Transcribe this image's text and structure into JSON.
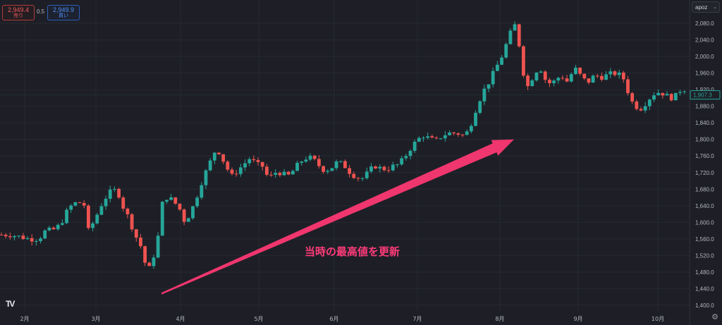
{
  "trade": {
    "sell_price": "2,949.4",
    "sell_label": "売り",
    "spread": "0.5",
    "buy_price": "2,949.9",
    "buy_label": "買い"
  },
  "symbol_badge": "apoz",
  "annotation": "当時の最高値を更新",
  "icons": {
    "logo": "tradingview-logo",
    "settings": "gear-icon"
  },
  "colors": {
    "background": "#1e1f26",
    "up": "#26a69a",
    "down": "#ef5350",
    "arrow": "#f0366e",
    "annotation_text": "#ff3b7a",
    "axis_text": "#b2b5be",
    "grid": "#262833"
  },
  "chart_data": {
    "type": "candlestick",
    "x_tick_labels": [
      "2月",
      "3月",
      "4月",
      "5月",
      "6月",
      "7月",
      "8月",
      "9月",
      "10月"
    ],
    "y_ticks": [
      1400,
      1440,
      1480,
      1520,
      1560,
      1600,
      1640,
      1680,
      1720,
      1760,
      1800,
      1840,
      1880,
      1920,
      1960,
      2000,
      2040,
      2080
    ],
    "y_tick_labels": [
      "1,400.0",
      "1,440.0",
      "1,480.0",
      "1,520.0",
      "1,560.0",
      "1,600.0",
      "1,640.0",
      "1,680.0",
      "1,720.0",
      "1,760.0",
      "1,800.0",
      "1,840.0",
      "1,880.0",
      "1,920.0",
      "1,960.0",
      "2,000.0",
      "2,040.0",
      "2,080.0"
    ],
    "ylim": [
      1385,
      2105
    ],
    "last_price_label": "1,907.3",
    "grid": true,
    "close_path": [
      [
        0,
        1570
      ],
      [
        3,
        1570
      ],
      [
        6,
        1565
      ],
      [
        9,
        1560
      ],
      [
        12,
        1560
      ],
      [
        14,
        1578
      ],
      [
        17,
        1583
      ],
      [
        19,
        1595
      ],
      [
        21,
        1625
      ],
      [
        23,
        1645
      ],
      [
        25,
        1648
      ],
      [
        27,
        1640
      ],
      [
        28,
        1580
      ],
      [
        30,
        1605
      ],
      [
        32,
        1640
      ],
      [
        34,
        1665
      ],
      [
        36,
        1680
      ],
      [
        38,
        1665
      ],
      [
        39,
        1640
      ],
      [
        41,
        1610
      ],
      [
        43,
        1570
      ],
      [
        45,
        1540
      ],
      [
        46,
        1505
      ],
      [
        48,
        1485
      ],
      [
        49,
        1520
      ],
      [
        51,
        1585
      ],
      [
        52,
        1660
      ],
      [
        54,
        1660
      ],
      [
        56,
        1645
      ],
      [
        58,
        1625
      ],
      [
        59,
        1600
      ],
      [
        61,
        1625
      ],
      [
        63,
        1665
      ],
      [
        65,
        1710
      ],
      [
        67,
        1740
      ],
      [
        68,
        1770
      ],
      [
        70,
        1770
      ],
      [
        72,
        1740
      ],
      [
        74,
        1710
      ],
      [
        76,
        1725
      ],
      [
        78,
        1740
      ],
      [
        80,
        1755
      ],
      [
        82,
        1740
      ],
      [
        84,
        1735
      ],
      [
        86,
        1705
      ],
      [
        88,
        1720
      ],
      [
        90,
        1720
      ],
      [
        92,
        1710
      ],
      [
        94,
        1725
      ],
      [
        96,
        1745
      ],
      [
        98,
        1755
      ],
      [
        100,
        1755
      ],
      [
        102,
        1738
      ],
      [
        104,
        1725
      ],
      [
        106,
        1730
      ],
      [
        108,
        1745
      ],
      [
        110,
        1740
      ],
      [
        112,
        1722
      ],
      [
        114,
        1710
      ],
      [
        116,
        1705
      ],
      [
        118,
        1720
      ],
      [
        120,
        1737
      ],
      [
        122,
        1730
      ],
      [
        124,
        1728
      ],
      [
        126,
        1735
      ],
      [
        128,
        1740
      ],
      [
        130,
        1760
      ],
      [
        132,
        1782
      ],
      [
        134,
        1800
      ],
      [
        136,
        1810
      ],
      [
        138,
        1800
      ],
      [
        140,
        1797
      ],
      [
        142,
        1810
      ],
      [
        144,
        1815
      ],
      [
        146,
        1815
      ],
      [
        148,
        1813
      ],
      [
        149,
        1805
      ],
      [
        151,
        1835
      ],
      [
        153,
        1880
      ],
      [
        155,
        1915
      ],
      [
        157,
        1940
      ],
      [
        159,
        1970
      ],
      [
        161,
        2000
      ],
      [
        163,
        2040
      ],
      [
        165,
        2080
      ],
      [
        166,
        2055
      ],
      [
        167,
        2010
      ],
      [
        168,
        1960
      ],
      [
        169,
        1920
      ],
      [
        170,
        1940
      ],
      [
        172,
        1960
      ],
      [
        173,
        1990
      ],
      [
        174,
        1955
      ],
      [
        176,
        1935
      ],
      [
        178,
        1940
      ],
      [
        180,
        1955
      ],
      [
        182,
        1940
      ],
      [
        184,
        1965
      ],
      [
        185,
        1970
      ],
      [
        187,
        1945
      ],
      [
        189,
        1940
      ],
      [
        191,
        1955
      ],
      [
        193,
        1950
      ],
      [
        195,
        1955
      ],
      [
        197,
        1960
      ],
      [
        199,
        1955
      ],
      [
        201,
        1940
      ],
      [
        202,
        1900
      ],
      [
        204,
        1880
      ],
      [
        206,
        1875
      ],
      [
        208,
        1895
      ],
      [
        210,
        1910
      ],
      [
        212,
        1915
      ],
      [
        214,
        1905
      ],
      [
        216,
        1900
      ],
      [
        218,
        1910
      ],
      [
        219,
        1930
      ],
      [
        221,
        1907
      ]
    ],
    "arrow": {
      "from": [
        "2024-03-22",
        1428
      ],
      "to": [
        "2024-08-12",
        1800
      ]
    }
  }
}
